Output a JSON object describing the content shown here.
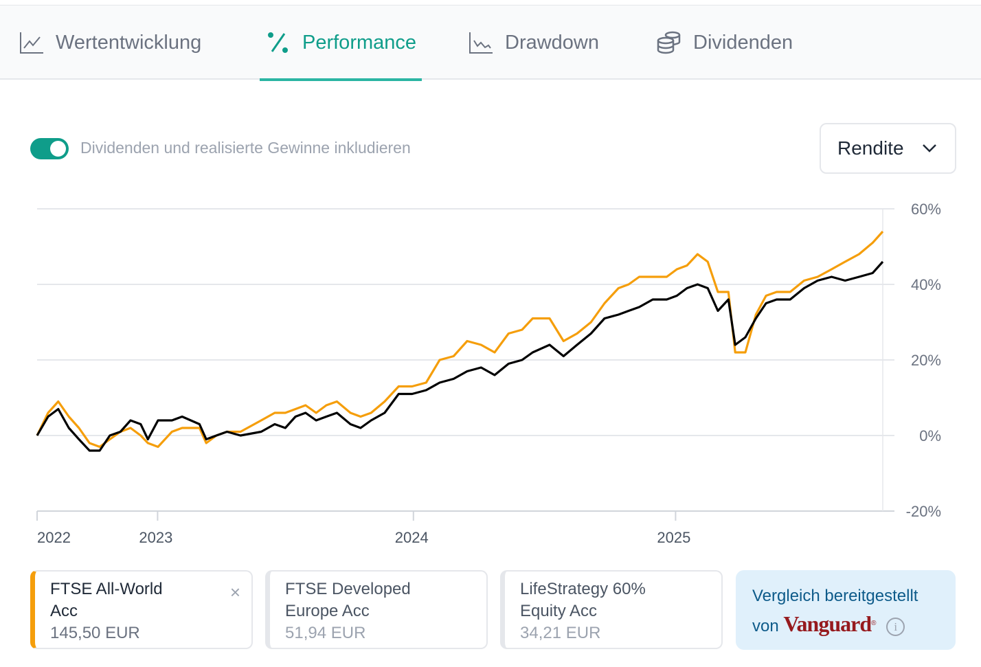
{
  "tabs": [
    {
      "label": "Wertentwicklung",
      "icon": "line-chart-icon",
      "active": false
    },
    {
      "label": "Performance",
      "icon": "percent-icon",
      "active": true
    },
    {
      "label": "Drawdown",
      "icon": "drawdown-chart-icon",
      "active": false
    },
    {
      "label": "Dividenden",
      "icon": "coins-icon",
      "active": false
    }
  ],
  "toggle": {
    "label": "Dividenden und realisierte Gewinne inkludieren",
    "on": true
  },
  "metric_select": {
    "value": "Rendite"
  },
  "colors": {
    "accent": "#0f9d8a",
    "series1": "#f59e0b",
    "series2": "#000000"
  },
  "chart_data": {
    "type": "line",
    "title": "",
    "xlabel": "",
    "ylabel": "",
    "x_unit": "weeks since start",
    "ylim": [
      -20,
      60
    ],
    "yticks": [
      60,
      40,
      20,
      0,
      -20
    ],
    "ytick_labels": [
      "60%",
      "40%",
      "20%",
      "0%",
      "-20%"
    ],
    "xticks": [
      {
        "x": 0,
        "label": "2022"
      },
      {
        "x": 28.5,
        "label": "2023"
      },
      {
        "x": 89,
        "label": "2024"
      },
      {
        "x": 151,
        "label": "2025"
      }
    ],
    "xlim": [
      0,
      200
    ],
    "grid": true,
    "x": [
      0,
      2.6,
      5,
      7.5,
      9.9,
      12.4,
      14.8,
      17.2,
      19.7,
      22.1,
      24.5,
      26.2,
      28.6,
      31.9,
      34.3,
      38.4,
      40,
      42.4,
      44.9,
      48.1,
      53,
      56.2,
      58.7,
      61.1,
      63.5,
      66,
      68.4,
      70.9,
      74.1,
      76.5,
      79,
      82.2,
      85.5,
      88.7,
      92,
      95.2,
      98.5,
      101.7,
      105,
      108.2,
      111.5,
      114.7,
      117.2,
      121.2,
      124.5,
      127.7,
      131,
      134.2,
      137.5,
      139.9,
      142.4,
      145.6,
      148.9,
      151.3,
      153.7,
      156.2,
      158.6,
      161,
      163.5,
      165.1,
      167.5,
      170,
      172.4,
      174.9,
      178.1,
      181.4,
      184.6,
      187.9,
      191.1,
      194.4,
      197.6,
      200
    ],
    "series": [
      {
        "name": "FTSE All-World Acc",
        "color": "#f59e0b",
        "values": [
          0,
          6,
          9,
          5,
          2,
          -2,
          -3,
          -1,
          1,
          2,
          0,
          -2,
          -3,
          1,
          2,
          2,
          -2,
          0,
          1,
          1,
          4,
          6,
          6,
          7,
          8,
          6,
          8,
          9,
          6,
          5,
          6,
          9,
          13,
          13,
          14,
          20,
          21,
          25,
          24,
          22,
          27,
          28,
          31,
          31,
          25,
          27,
          30,
          35,
          39,
          40,
          42,
          42,
          42,
          44,
          45,
          48,
          46,
          38,
          38,
          22,
          22,
          32,
          37,
          38,
          38,
          41,
          42,
          44,
          46,
          48,
          51,
          54
        ]
      },
      {
        "name": "LifeStrategy 60% Equity Acc",
        "color": "#000000",
        "values": [
          0,
          5,
          7,
          2,
          -1,
          -4,
          -4,
          0,
          1,
          4,
          3,
          -1,
          4,
          4,
          5,
          3,
          -1,
          0,
          1,
          0,
          1,
          3,
          2,
          5,
          6,
          4,
          5,
          6,
          3,
          2,
          4,
          6,
          11,
          11,
          12,
          14,
          15,
          17,
          18,
          16,
          19,
          20,
          22,
          24,
          21,
          24,
          27,
          31,
          32,
          33,
          34,
          36,
          36,
          37,
          39,
          40,
          39,
          33,
          36,
          24,
          26,
          31,
          35,
          36,
          36,
          39,
          41,
          42,
          41,
          42,
          43,
          46
        ]
      }
    ]
  },
  "cards": [
    {
      "name_line1": "FTSE All-World",
      "name_line2": "Acc",
      "price": "145,50 EUR",
      "close": "×"
    },
    {
      "name_line1": "FTSE Developed",
      "name_line2": "Europe Acc",
      "price": "51,94 EUR"
    },
    {
      "name_line1": "LifeStrategy 60%",
      "name_line2": "Equity Acc",
      "price": "34,21 EUR"
    }
  ],
  "provider": {
    "text_line1": "Vergleich bereitgestellt",
    "text_line2": "von",
    "logo": "Vanguard",
    "reg": "®",
    "info": "i"
  }
}
